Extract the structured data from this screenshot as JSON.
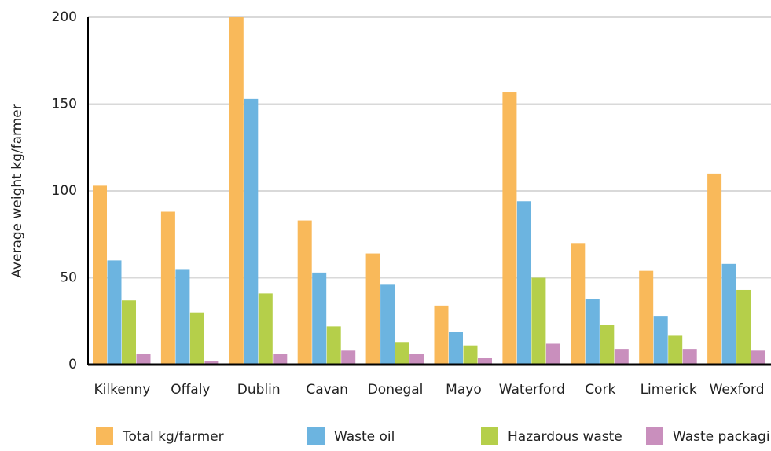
{
  "chart_data": {
    "type": "bar",
    "y_label": "Average weight kg/farmer",
    "categories": [
      "Kilkenny",
      "Offaly",
      "Dublin",
      "Cavan",
      "Donegal",
      "Mayo",
      "Waterford",
      "Cork",
      "Limerick",
      "Wexford"
    ],
    "series": [
      {
        "name": "Total kg/farmer",
        "color": "#f9b95a",
        "values": [
          103,
          88,
          200,
          83,
          64,
          34,
          157,
          70,
          54,
          110
        ]
      },
      {
        "name": "Waste oil",
        "color": "#6cb4e0",
        "values": [
          60,
          55,
          153,
          53,
          46,
          19,
          94,
          38,
          28,
          58
        ]
      },
      {
        "name": "Hazardous waste",
        "color": "#b5cf4a",
        "values": [
          37,
          30,
          41,
          22,
          13,
          11,
          50,
          23,
          17,
          43
        ]
      },
      {
        "name": "Waste packaging",
        "color": "#c98fbd",
        "values": [
          6,
          2,
          6,
          8,
          6,
          4,
          12,
          9,
          9,
          8
        ]
      }
    ],
    "ylim": [
      0,
      200
    ],
    "yticks": [
      0,
      50,
      100,
      150,
      200
    ],
    "grid": true,
    "legend": "bottom"
  }
}
